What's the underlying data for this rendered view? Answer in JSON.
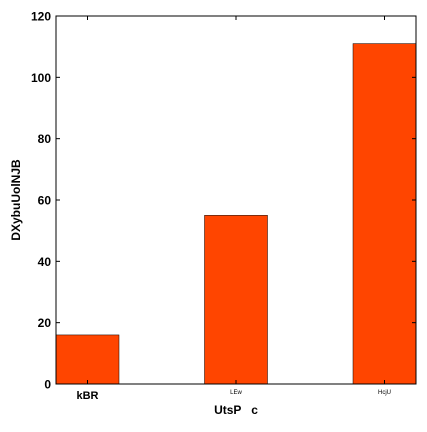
{
  "chart_data": {
    "type": "bar",
    "categories": [
      "kBR",
      "LEw",
      "HcjU"
    ],
    "values": [
      16,
      55,
      111
    ],
    "title": "",
    "xlabel": "UtsP   c",
    "ylabel": "DXybuUolNJB",
    "ylim": [
      0,
      120
    ],
    "yticks": [
      0,
      20,
      40,
      60,
      80,
      100,
      120
    ],
    "grid": false,
    "bar_color": "#ff4500"
  }
}
